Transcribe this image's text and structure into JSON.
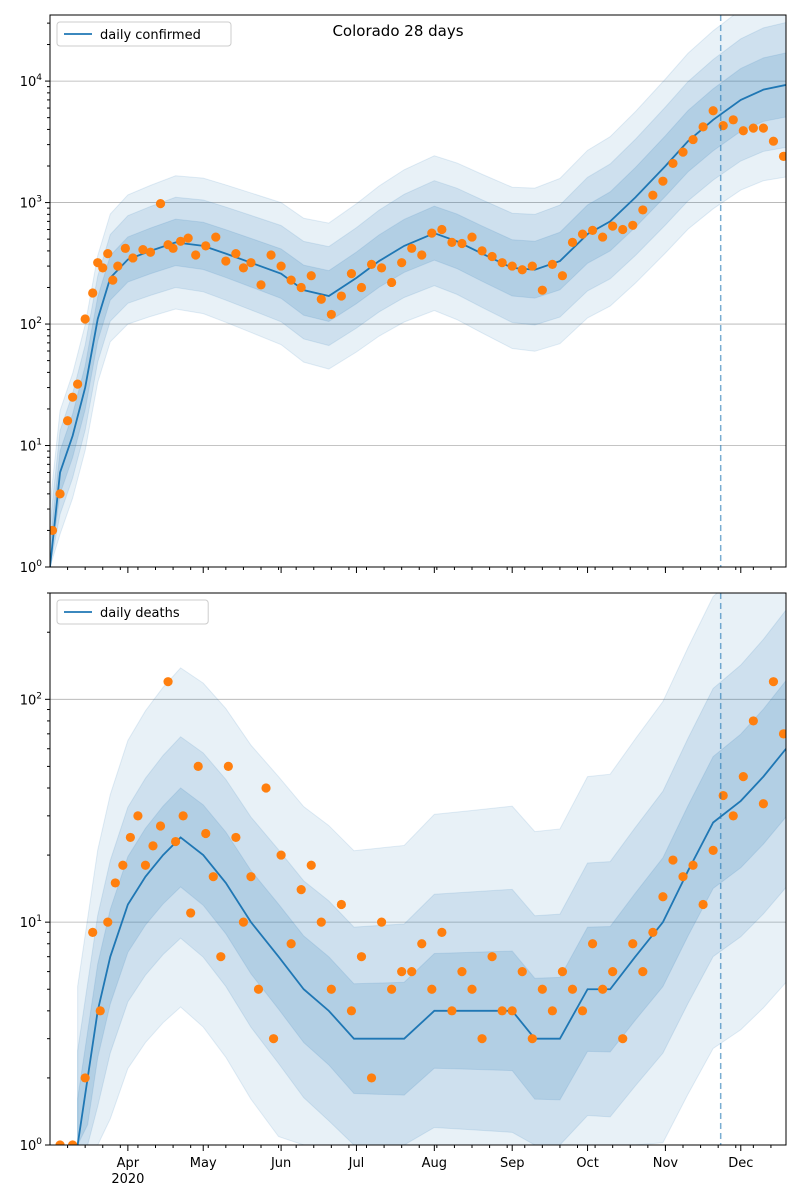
{
  "figure_title": "Colorado 28 days",
  "chart_data": [
    {
      "type": "scatter",
      "title": "Colorado 28 days",
      "yscale": "log",
      "ylim": [
        1,
        35000
      ],
      "xlim": [
        "2020-03-01",
        "2020-12-19"
      ],
      "grid": "y-major",
      "legend": {
        "position": "top-left",
        "entries": [
          "daily confirmed"
        ]
      },
      "y_tick_labels": [
        "10^0",
        "10^1",
        "10^2",
        "10^3",
        "10^4"
      ],
      "forecast_start": "2020-11-23",
      "series": [
        {
          "name": "daily confirmed",
          "kind": "line",
          "color": "#1f77b4",
          "x": [
            "2020-03-01",
            "2020-03-05",
            "2020-03-10",
            "2020-03-15",
            "2020-03-20",
            "2020-03-25",
            "2020-04-01",
            "2020-04-10",
            "2020-04-20",
            "2020-05-01",
            "2020-05-10",
            "2020-05-20",
            "2020-06-01",
            "2020-06-10",
            "2020-06-20",
            "2020-07-01",
            "2020-07-10",
            "2020-07-20",
            "2020-08-01",
            "2020-08-10",
            "2020-08-20",
            "2020-09-01",
            "2020-09-10",
            "2020-09-20",
            "2020-10-01",
            "2020-10-10",
            "2020-10-20",
            "2020-11-01",
            "2020-11-10",
            "2020-11-20",
            "2020-12-01",
            "2020-12-10",
            "2020-12-19"
          ],
          "y": [
            1,
            6,
            12,
            30,
            110,
            240,
            340,
            400,
            470,
            440,
            380,
            320,
            260,
            190,
            170,
            240,
            330,
            440,
            560,
            480,
            380,
            290,
            280,
            330,
            550,
            700,
            1100,
            2000,
            3200,
            4800,
            7000,
            8500,
            9300
          ]
        },
        {
          "name": "observed",
          "kind": "points",
          "color": "#ff7f0e",
          "x": [
            "2020-03-02",
            "2020-03-05",
            "2020-03-08",
            "2020-03-10",
            "2020-03-12",
            "2020-03-15",
            "2020-03-18",
            "2020-03-20",
            "2020-03-22",
            "2020-03-24",
            "2020-03-26",
            "2020-03-28",
            "2020-03-31",
            "2020-04-03",
            "2020-04-07",
            "2020-04-10",
            "2020-04-14",
            "2020-04-17",
            "2020-04-19",
            "2020-04-22",
            "2020-04-25",
            "2020-04-28",
            "2020-05-02",
            "2020-05-06",
            "2020-05-10",
            "2020-05-14",
            "2020-05-17",
            "2020-05-20",
            "2020-05-24",
            "2020-05-28",
            "2020-06-01",
            "2020-06-05",
            "2020-06-09",
            "2020-06-13",
            "2020-06-17",
            "2020-06-21",
            "2020-06-25",
            "2020-06-29",
            "2020-07-03",
            "2020-07-07",
            "2020-07-11",
            "2020-07-15",
            "2020-07-19",
            "2020-07-23",
            "2020-07-27",
            "2020-07-31",
            "2020-08-04",
            "2020-08-08",
            "2020-08-12",
            "2020-08-16",
            "2020-08-20",
            "2020-08-24",
            "2020-08-28",
            "2020-09-01",
            "2020-09-05",
            "2020-09-09",
            "2020-09-13",
            "2020-09-17",
            "2020-09-21",
            "2020-09-25",
            "2020-09-29",
            "2020-10-03",
            "2020-10-07",
            "2020-10-11",
            "2020-10-15",
            "2020-10-19",
            "2020-10-23",
            "2020-10-27",
            "2020-10-31",
            "2020-11-04",
            "2020-11-08",
            "2020-11-12",
            "2020-11-16",
            "2020-11-20",
            "2020-11-24",
            "2020-11-28",
            "2020-12-02",
            "2020-12-06",
            "2020-12-10",
            "2020-12-14",
            "2020-12-18"
          ],
          "y": [
            2,
            4,
            16,
            25,
            32,
            110,
            180,
            320,
            290,
            380,
            230,
            300,
            420,
            350,
            410,
            390,
            980,
            450,
            420,
            480,
            510,
            370,
            440,
            520,
            330,
            380,
            290,
            320,
            210,
            370,
            300,
            230,
            200,
            250,
            160,
            120,
            170,
            260,
            200,
            310,
            290,
            220,
            320,
            420,
            370,
            560,
            600,
            470,
            460,
            520,
            400,
            360,
            320,
            300,
            280,
            300,
            190,
            310,
            250,
            470,
            550,
            590,
            520,
            640,
            600,
            650,
            870,
            1150,
            1500,
            2100,
            2600,
            3300,
            4200,
            5700,
            4300,
            4800,
            3900,
            4100,
            4100,
            3200,
            2400
          ]
        }
      ]
    },
    {
      "type": "scatter",
      "yscale": "log",
      "ylim": [
        1,
        300
      ],
      "xlim": [
        "2020-03-01",
        "2020-12-19"
      ],
      "grid": "y-major",
      "legend": {
        "position": "top-left",
        "entries": [
          "daily deaths"
        ]
      },
      "y_tick_labels": [
        "10^0",
        "10^1",
        "10^2"
      ],
      "x_tick_labels": [
        "Apr\n2020",
        "May",
        "Jun",
        "Jul",
        "Aug",
        "Sep",
        "Oct",
        "Nov",
        "Dec"
      ],
      "forecast_start": "2020-11-23",
      "series": [
        {
          "name": "daily deaths",
          "kind": "line",
          "color": "#1f77b4",
          "x": [
            "2020-03-12",
            "2020-03-16",
            "2020-03-20",
            "2020-03-25",
            "2020-04-01",
            "2020-04-08",
            "2020-04-15",
            "2020-04-22",
            "2020-05-01",
            "2020-05-10",
            "2020-05-20",
            "2020-05-31",
            "2020-06-10",
            "2020-06-20",
            "2020-06-30",
            "2020-07-10",
            "2020-07-20",
            "2020-08-01",
            "2020-08-15",
            "2020-09-01",
            "2020-09-10",
            "2020-09-20",
            "2020-10-01",
            "2020-10-10",
            "2020-10-20",
            "2020-10-31",
            "2020-11-10",
            "2020-11-20",
            "2020-12-01",
            "2020-12-10",
            "2020-12-19"
          ],
          "y": [
            1,
            2,
            4,
            7,
            12,
            16,
            20,
            24,
            20,
            15,
            10,
            7,
            5,
            4,
            3,
            3,
            3,
            4,
            4,
            4,
            3,
            3,
            5,
            5,
            7,
            10,
            17,
            28,
            35,
            45,
            60
          ]
        },
        {
          "name": "observed",
          "kind": "points",
          "color": "#ff7f0e",
          "x": [
            "2020-03-05",
            "2020-03-10",
            "2020-03-15",
            "2020-03-18",
            "2020-03-21",
            "2020-03-24",
            "2020-03-27",
            "2020-03-30",
            "2020-04-02",
            "2020-04-05",
            "2020-04-08",
            "2020-04-11",
            "2020-04-14",
            "2020-04-17",
            "2020-04-20",
            "2020-04-23",
            "2020-04-26",
            "2020-04-29",
            "2020-05-02",
            "2020-05-05",
            "2020-05-08",
            "2020-05-11",
            "2020-05-14",
            "2020-05-17",
            "2020-05-20",
            "2020-05-23",
            "2020-05-26",
            "2020-05-29",
            "2020-06-01",
            "2020-06-05",
            "2020-06-09",
            "2020-06-13",
            "2020-06-17",
            "2020-06-21",
            "2020-06-25",
            "2020-06-29",
            "2020-07-03",
            "2020-07-07",
            "2020-07-11",
            "2020-07-15",
            "2020-07-19",
            "2020-07-23",
            "2020-07-27",
            "2020-07-31",
            "2020-08-04",
            "2020-08-08",
            "2020-08-12",
            "2020-08-16",
            "2020-08-20",
            "2020-08-24",
            "2020-08-28",
            "2020-09-01",
            "2020-09-05",
            "2020-09-09",
            "2020-09-13",
            "2020-09-17",
            "2020-09-21",
            "2020-09-25",
            "2020-09-29",
            "2020-10-03",
            "2020-10-07",
            "2020-10-11",
            "2020-10-15",
            "2020-10-19",
            "2020-10-23",
            "2020-10-27",
            "2020-10-31",
            "2020-11-04",
            "2020-11-08",
            "2020-11-12",
            "2020-11-16",
            "2020-11-20",
            "2020-11-24",
            "2020-11-28",
            "2020-12-02",
            "2020-12-06",
            "2020-12-10",
            "2020-12-14",
            "2020-12-18"
          ],
          "y": [
            1,
            1,
            2,
            9,
            4,
            10,
            15,
            18,
            24,
            30,
            18,
            22,
            27,
            120,
            23,
            30,
            11,
            50,
            25,
            16,
            7,
            50,
            24,
            10,
            16,
            5,
            40,
            3,
            20,
            8,
            14,
            18,
            10,
            5,
            12,
            4,
            7,
            2,
            10,
            5,
            6,
            6,
            8,
            5,
            9,
            4,
            6,
            5,
            3,
            7,
            4,
            4,
            6,
            3,
            5,
            4,
            6,
            5,
            4,
            8,
            5,
            6,
            3,
            8,
            6,
            9,
            13,
            19,
            16,
            18,
            12,
            21,
            37,
            30,
            45,
            80,
            34,
            120,
            70
          ]
        }
      ]
    }
  ]
}
